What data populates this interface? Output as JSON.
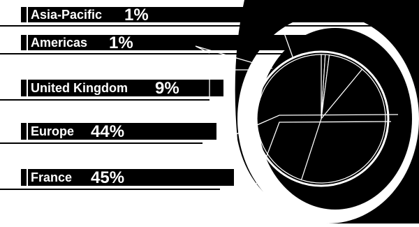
{
  "chart_data": {
    "type": "pie",
    "categories": [
      "Asia-Pacific",
      "Americas",
      "United Kingdom",
      "Europe",
      "France"
    ],
    "values": [
      1,
      1,
      9,
      44,
      45
    ],
    "value_labels": [
      "1%",
      "1%",
      "9%",
      "44%",
      "45%"
    ],
    "unit": "%",
    "title": "",
    "legend": "left",
    "colors": {
      "background": "#000000",
      "foreground": "#ffffff"
    }
  }
}
